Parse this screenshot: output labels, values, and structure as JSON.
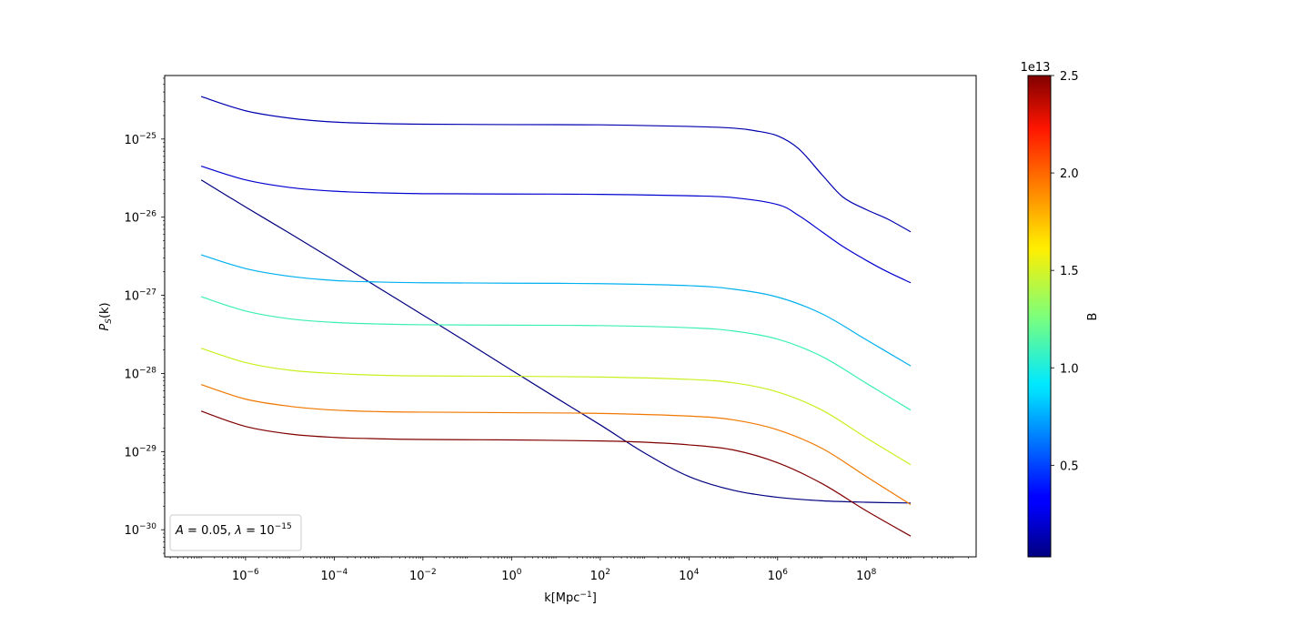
{
  "chart_data": {
    "type": "line",
    "x_scale": "log",
    "y_scale": "log",
    "xlabel": "k[Mpc",
    "xlabel_sup": "−1",
    "xlabel_end": "]",
    "ylabel": "P",
    "ylabel_sub": "S",
    "ylabel_end": "(k)",
    "xlim": [
      1.5e-08,
      30000000000.0
    ],
    "ylim": [
      4.5e-31,
      6.5e-25
    ],
    "x_ticks": [
      {
        "value": 1e-06,
        "base": "10",
        "exp": "−6"
      },
      {
        "value": 0.0001,
        "base": "10",
        "exp": "−4"
      },
      {
        "value": 0.01,
        "base": "10",
        "exp": "−2"
      },
      {
        "value": 1,
        "base": "10",
        "exp": "0"
      },
      {
        "value": 100.0,
        "base": "10",
        "exp": "2"
      },
      {
        "value": 10000.0,
        "base": "10",
        "exp": "4"
      },
      {
        "value": 1000000.0,
        "base": "10",
        "exp": "6"
      },
      {
        "value": 100000000.0,
        "base": "10",
        "exp": "8"
      }
    ],
    "y_ticks": [
      {
        "value": 1e-30,
        "base": "10",
        "exp": "−30"
      },
      {
        "value": 1e-29,
        "base": "10",
        "exp": "−29"
      },
      {
        "value": 1e-28,
        "base": "10",
        "exp": "−28"
      },
      {
        "value": 1e-27,
        "base": "10",
        "exp": "−27"
      },
      {
        "value": 1e-26,
        "base": "10",
        "exp": "−26"
      },
      {
        "value": 1e-25,
        "base": "10",
        "exp": "−25"
      }
    ],
    "legend": {
      "placement": "lower-left",
      "text_parts": [
        "A",
        " = 0.05, ",
        "λ",
        " = 10",
        "−15"
      ]
    },
    "colorbar": {
      "label": "B",
      "offset_text": "1e13",
      "range": [
        0.03,
        2.5
      ],
      "ticks": [
        {
          "value": 0.5,
          "label": "0.5"
        },
        {
          "value": 1.0,
          "label": "1.0"
        },
        {
          "value": 1.5,
          "label": "1.5"
        },
        {
          "value": 2.0,
          "label": "2.0"
        },
        {
          "value": 2.5,
          "label": "2.5"
        }
      ]
    },
    "series": [
      {
        "color": "#000080",
        "points": [
          [
            1e-07,
            3e-26
          ],
          [
            1e-06,
            1.35e-26
          ],
          [
            1e-05,
            6.2e-27
          ],
          [
            0.0001,
            2.8e-27
          ],
          [
            0.001,
            1.25e-27
          ],
          [
            0.01,
            5.6e-28
          ],
          [
            0.1,
            2.5e-28
          ],
          [
            1,
            1.1e-28
          ],
          [
            10,
            4.9e-29
          ],
          [
            100.0,
            2.2e-29
          ],
          [
            1000.0,
            9.6e-30
          ],
          [
            10000.0,
            4.8e-30
          ],
          [
            100000.0,
            3.2e-30
          ],
          [
            1000000.0,
            2.6e-30
          ],
          [
            10000000.0,
            2.35e-30
          ],
          [
            100000000.0,
            2.25e-30
          ],
          [
            1000000000.0,
            2.2e-30
          ]
        ]
      },
      {
        "color": "#0000b0",
        "points": [
          [
            1e-07,
            3.5e-25
          ],
          [
            1e-06,
            2.3e-25
          ],
          [
            1e-05,
            1.85e-25
          ],
          [
            0.0001,
            1.65e-25
          ],
          [
            0.001,
            1.58e-25
          ],
          [
            0.01,
            1.55e-25
          ],
          [
            1,
            1.53e-25
          ],
          [
            100.0,
            1.52e-25
          ],
          [
            10000.0,
            1.45e-25
          ],
          [
            100000.0,
            1.38e-25
          ],
          [
            300000.0,
            1.28e-25
          ],
          [
            1000000.0,
            1.1e-25
          ],
          [
            3000000.0,
            7.5e-26
          ],
          [
            10000000.0,
            3.5e-26
          ],
          [
            30000000.0,
            1.8e-26
          ],
          [
            100000000.0,
            1.25e-26
          ],
          [
            300000000.0,
            9.5e-27
          ],
          [
            1000000000.0,
            6.5e-27
          ]
        ]
      },
      {
        "color": "#0000d0",
        "points": [
          [
            1e-07,
            4.5e-26
          ],
          [
            1e-06,
            3e-26
          ],
          [
            1e-05,
            2.4e-26
          ],
          [
            0.0001,
            2.15e-26
          ],
          [
            0.001,
            2.05e-26
          ],
          [
            0.01,
            2e-26
          ],
          [
            1,
            1.98e-26
          ],
          [
            100.0,
            1.96e-26
          ],
          [
            10000.0,
            1.88e-26
          ],
          [
            100000.0,
            1.78e-26
          ],
          [
            1000000.0,
            1.45e-26
          ],
          [
            3000000.0,
            1.05e-26
          ],
          [
            10000000.0,
            6.5e-27
          ],
          [
            30000000.0,
            4.2e-27
          ],
          [
            100000000.0,
            2.8e-27
          ],
          [
            300000000.0,
            2e-27
          ],
          [
            1000000000.0,
            1.45e-27
          ]
        ]
      },
      {
        "color": "#00b0f0",
        "points": [
          [
            1e-07,
            3.3e-27
          ],
          [
            1e-06,
            2.2e-27
          ],
          [
            1e-05,
            1.75e-27
          ],
          [
            0.0001,
            1.55e-27
          ],
          [
            0.001,
            1.48e-27
          ],
          [
            0.01,
            1.45e-27
          ],
          [
            1,
            1.43e-27
          ],
          [
            100.0,
            1.41e-27
          ],
          [
            10000.0,
            1.33e-27
          ],
          [
            100000.0,
            1.2e-27
          ],
          [
            1000000.0,
            9.5e-28
          ],
          [
            10000000.0,
            5.8e-28
          ],
          [
            100000000.0,
            2.7e-28
          ],
          [
            1000000000.0,
            1.25e-28
          ]
        ]
      },
      {
        "color": "#3cf0b0",
        "points": [
          [
            1e-07,
            9.6e-28
          ],
          [
            1e-06,
            6.3e-28
          ],
          [
            1e-05,
            5e-28
          ],
          [
            0.0001,
            4.5e-28
          ],
          [
            0.001,
            4.3e-28
          ],
          [
            0.01,
            4.2e-28
          ],
          [
            1,
            4.15e-28
          ],
          [
            100.0,
            4.1e-28
          ],
          [
            10000.0,
            3.85e-28
          ],
          [
            100000.0,
            3.5e-28
          ],
          [
            1000000.0,
            2.75e-28
          ],
          [
            10000000.0,
            1.65e-28
          ],
          [
            100000000.0,
            7.5e-29
          ],
          [
            1000000000.0,
            3.4e-29
          ]
        ]
      },
      {
        "color": "#c8f020",
        "points": [
          [
            1e-07,
            2.1e-28
          ],
          [
            1e-06,
            1.38e-28
          ],
          [
            1e-05,
            1.1e-28
          ],
          [
            0.0001,
            1e-28
          ],
          [
            0.001,
            9.5e-29
          ],
          [
            0.01,
            9.3e-29
          ],
          [
            1,
            9.2e-29
          ],
          [
            100.0,
            9e-29
          ],
          [
            10000.0,
            8.4e-29
          ],
          [
            100000.0,
            7.6e-29
          ],
          [
            1000000.0,
            5.8e-29
          ],
          [
            10000000.0,
            3.4e-29
          ],
          [
            100000000.0,
            1.5e-29
          ],
          [
            1000000000.0,
            6.8e-30
          ]
        ]
      },
      {
        "color": "#f07800",
        "points": [
          [
            1e-07,
            7.2e-29
          ],
          [
            1e-06,
            4.7e-29
          ],
          [
            1e-05,
            3.8e-29
          ],
          [
            0.0001,
            3.4e-29
          ],
          [
            0.001,
            3.25e-29
          ],
          [
            0.01,
            3.2e-29
          ],
          [
            1,
            3.15e-29
          ],
          [
            100.0,
            3.08e-29
          ],
          [
            10000.0,
            2.85e-29
          ],
          [
            100000.0,
            2.55e-29
          ],
          [
            1000000.0,
            1.9e-29
          ],
          [
            10000000.0,
            1.1e-29
          ],
          [
            100000000.0,
            4.8e-30
          ],
          [
            1000000000.0,
            2.1e-30
          ]
        ]
      },
      {
        "color": "#800000",
        "points": [
          [
            1e-07,
            3.3e-29
          ],
          [
            1e-06,
            2.1e-29
          ],
          [
            1e-05,
            1.68e-29
          ],
          [
            0.0001,
            1.52e-29
          ],
          [
            0.001,
            1.46e-29
          ],
          [
            0.01,
            1.43e-29
          ],
          [
            1,
            1.41e-29
          ],
          [
            100.0,
            1.37e-29
          ],
          [
            1000.0,
            1.32e-29
          ],
          [
            10000.0,
            1.22e-29
          ],
          [
            100000.0,
            1.05e-29
          ],
          [
            1000000.0,
            7.2e-30
          ],
          [
            10000000.0,
            3.9e-30
          ],
          [
            100000000.0,
            1.75e-30
          ],
          [
            1000000000.0,
            8.3e-31
          ]
        ]
      }
    ]
  }
}
